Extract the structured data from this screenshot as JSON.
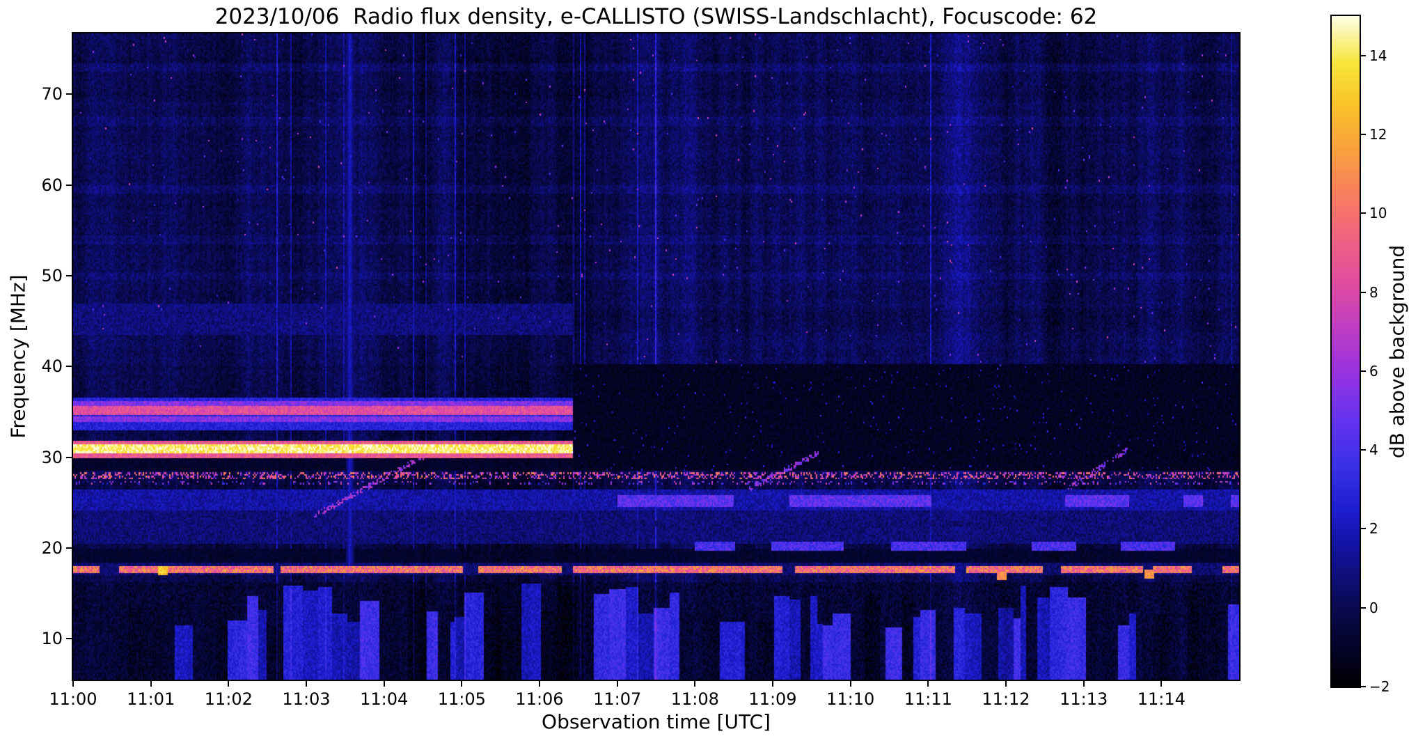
{
  "chart_data": {
    "type": "heatmap",
    "title": "2023/10/06  Radio flux density, e-CALLISTO (SWISS-Landschlacht), Focuscode: 62",
    "xlabel": "Observation time [UTC]",
    "ylabel": "Frequency [MHz]",
    "x_tick_labels": [
      "11:00",
      "11:01",
      "11:02",
      "11:03",
      "11:04",
      "11:05",
      "11:06",
      "11:07",
      "11:08",
      "11:09",
      "11:10",
      "11:11",
      "11:12",
      "11:13",
      "11:14"
    ],
    "x_range_minutes": [
      0,
      15
    ],
    "y_ticks_mhz": [
      10,
      20,
      30,
      40,
      50,
      60,
      70
    ],
    "y_range_mhz": [
      5.5,
      76.7
    ],
    "grid": false,
    "colorbar": {
      "label": "dB above background",
      "ticks": [
        -2,
        0,
        2,
        4,
        6,
        8,
        10,
        12,
        14
      ],
      "range": [
        -2,
        15
      ],
      "position": "right"
    },
    "colormap_stops": [
      [
        0.0,
        "#000002"
      ],
      [
        0.06,
        "#04042a"
      ],
      [
        0.12,
        "#0a0a52"
      ],
      [
        0.2,
        "#12129a"
      ],
      [
        0.26,
        "#1c1cd0"
      ],
      [
        0.33,
        "#3a30e8"
      ],
      [
        0.4,
        "#6633ee"
      ],
      [
        0.47,
        "#9932e0"
      ],
      [
        0.54,
        "#c23ec0"
      ],
      [
        0.61,
        "#e44e9c"
      ],
      [
        0.68,
        "#f4667c"
      ],
      [
        0.74,
        "#f8815c"
      ],
      [
        0.8,
        "#f9a03e"
      ],
      [
        0.87,
        "#f9c32a"
      ],
      [
        0.93,
        "#f7e63a"
      ],
      [
        1.0,
        "#fefde6"
      ]
    ],
    "upper_faint_lines_mhz": [
      50,
      54,
      59.5,
      67,
      73
    ],
    "features": [
      {
        "id": "dark-band-29",
        "type": "dark-band",
        "f0": 28.55,
        "f1": 30.15,
        "db": -1.3
      },
      {
        "id": "dark-band-19",
        "type": "dark-band",
        "f0": 18.45,
        "f1": 19.9,
        "db": -1.2
      },
      {
        "id": "dark-band-22",
        "type": "dark-band",
        "f0": 22.3,
        "f1": 23.0,
        "db": -0.6
      },
      {
        "id": "band-21-24",
        "type": "band",
        "f0": 20.5,
        "f1": 24.2,
        "t0": 0,
        "t1": 15,
        "db": 0.7
      },
      {
        "id": "band-24-26",
        "type": "band",
        "f0": 24.2,
        "f1": 26.35,
        "t0": 0,
        "t1": 15,
        "db": 1.6
      },
      {
        "id": "band-17-18",
        "type": "band",
        "f0": 16.95,
        "f1": 18.35,
        "t0": 0,
        "t1": 15,
        "db": 0.5
      },
      {
        "id": "band-33-37",
        "type": "band",
        "f0": 33.0,
        "f1": 36.6,
        "t0": 0,
        "t1": 6.42,
        "db": 2.8
      },
      {
        "id": "band-44-47",
        "type": "band",
        "f0": 43.5,
        "f1": 47.0,
        "t0": 0,
        "t1": 6.42,
        "db": 0.8
      },
      {
        "id": "line-34",
        "type": "line",
        "freq": 34.25,
        "half_width": 0.3,
        "t0": 0,
        "t1": 6.42,
        "db": 5.0
      },
      {
        "id": "line-36",
        "type": "line",
        "freq": 35.95,
        "half_width": 0.3,
        "t0": 0,
        "t1": 6.42,
        "db": 5.0
      },
      {
        "id": "line-35",
        "type": "line",
        "freq": 35.15,
        "half_width": 0.4,
        "t0": 0,
        "t1": 6.42,
        "db": 8.0
      },
      {
        "id": "halo-31",
        "type": "line",
        "freq": 30.9,
        "half_width": 0.95,
        "t0": 0,
        "t1": 6.42,
        "db": 8.5
      },
      {
        "id": "line-31",
        "type": "line",
        "freq": 30.9,
        "half_width": 0.5,
        "t0": 0,
        "t1": 6.42,
        "db": 13.8
      },
      {
        "id": "dark-after-cut",
        "type": "dark-region",
        "f0": 28.45,
        "f1": 40.2,
        "t0": 6.42,
        "t1": 15,
        "db": -1.6
      },
      {
        "id": "speckle-28",
        "type": "speckle-line",
        "freq": 28.0,
        "half_width": 0.35,
        "t0": 0,
        "t1": 15,
        "db": 8.0,
        "density": 0.35
      },
      {
        "id": "speckle-27",
        "type": "speckle-line",
        "freq": 27.15,
        "half_width": 0.25,
        "t0": 0,
        "t1": 15,
        "db": 5.0,
        "density": 0.15
      },
      {
        "id": "dashed-17",
        "type": "dashed-line",
        "freq": 17.6,
        "half_width": 0.4,
        "t0": 0,
        "t1": 15,
        "db": 9.5
      },
      {
        "id": "seg-25",
        "type": "segment-line",
        "freq": 25.1,
        "half_width": 0.65,
        "t0": 7.0,
        "t1": 15,
        "db": 4.5
      },
      {
        "id": "seg-20",
        "type": "segment-line",
        "freq": 20.25,
        "half_width": 0.5,
        "t0": 8.0,
        "t1": 15,
        "db": 4.0
      },
      {
        "id": "low-stripes",
        "type": "stripe-region",
        "f1": 16.2,
        "db_bright": 2.4,
        "db_dark": -1.2
      },
      {
        "id": "streak-1103",
        "type": "vstreak",
        "t": 3.55,
        "f0": 17.0,
        "db": 2.3
      },
      {
        "id": "drift-1",
        "type": "drift",
        "t0": 3.1,
        "t1": 4.7,
        "f0": 23.5,
        "f1": 31.0,
        "db": 5.5
      },
      {
        "id": "drift-2",
        "type": "drift",
        "t0": 8.7,
        "t1": 9.6,
        "f0": 26.5,
        "f1": 30.5,
        "db": 5.0
      },
      {
        "id": "drift-3",
        "type": "drift",
        "t0": 12.8,
        "t1": 13.6,
        "f0": 26.5,
        "f1": 31.0,
        "db": 5.0
      },
      {
        "id": "hotspot-1",
        "type": "hotspot",
        "t": 1.15,
        "freq": 17.55,
        "db": 13
      },
      {
        "id": "hotspot-2",
        "type": "hotspot",
        "t": 11.95,
        "freq": 16.95,
        "db": 11
      },
      {
        "id": "hotspot-3",
        "type": "hotspot",
        "t": 13.85,
        "freq": 17.1,
        "db": 11
      }
    ]
  }
}
